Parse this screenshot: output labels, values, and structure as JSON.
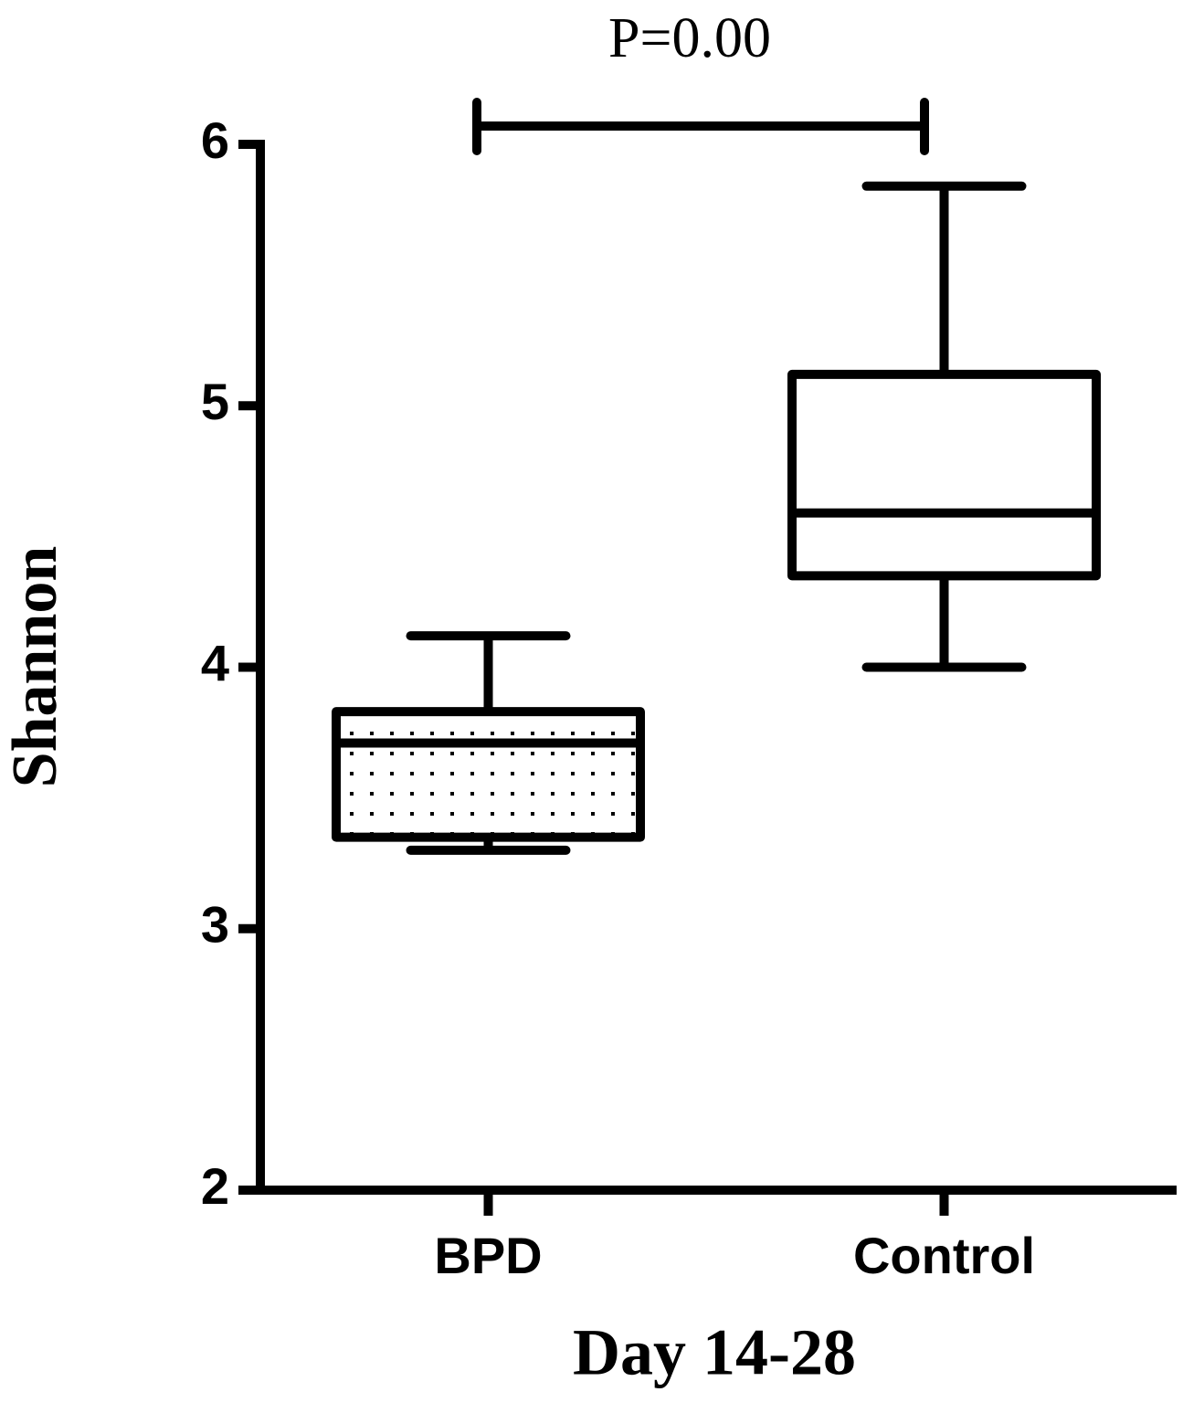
{
  "chart_data": {
    "type": "box",
    "annotation": "P=0.00",
    "xlabel": "Day 14-28",
    "ylabel": "Shannon",
    "categories": [
      "BPD",
      "Control"
    ],
    "boxes": [
      {
        "whislo": 3.3,
        "q1": 3.35,
        "med": 3.71,
        "q3": 3.83,
        "whishi": 4.12
      },
      {
        "whislo": 4.0,
        "q1": 4.35,
        "med": 4.59,
        "q3": 5.12,
        "whishi": 5.84
      }
    ],
    "fill_patterns": [
      "dots",
      "none"
    ],
    "color": "#000000",
    "ylim": [
      2,
      6
    ],
    "yticks": [
      2,
      3,
      4,
      5,
      6
    ],
    "grid": false
  }
}
